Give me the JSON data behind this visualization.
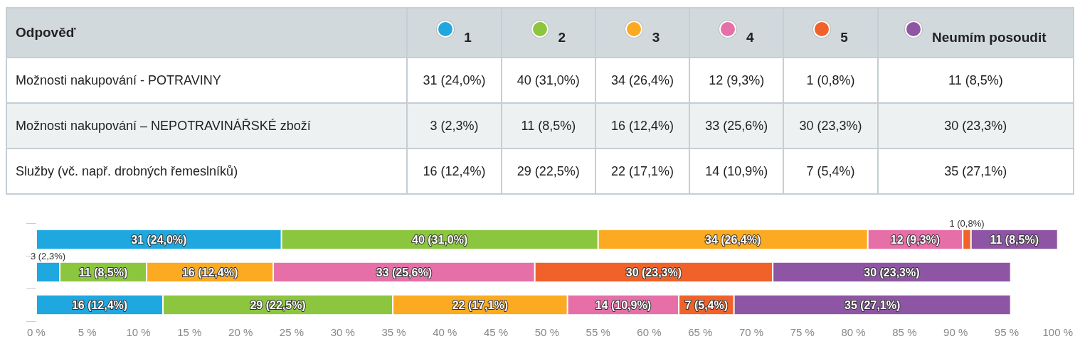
{
  "chart_data": {
    "type": "bar",
    "orientation": "horizontal",
    "stacked": true,
    "legend": "top",
    "tick_labels": "x",
    "grid": false,
    "categories": [
      null,
      null,
      null
    ],
    "annotations": [
      "Odpověď",
      "Možnosti nakupování - POTRAVINY",
      "Možnosti nakupování – NEPOTRAVINÁŘSKÉ zboží",
      "Služby (vč. např. drobných řemeslníků)"
    ],
    "series": [
      {
        "name": "1",
        "color": "#1fa8e0",
        "values": [
          24.0,
          2.3,
          12.4
        ],
        "value_labels": [
          "31 (24,0%)",
          "3 (2,3%)",
          "16 (12,4%)"
        ]
      },
      {
        "name": "2",
        "color": "#8cc63f",
        "values": [
          31.0,
          8.5,
          22.5
        ],
        "value_labels": [
          "40 (31,0%)",
          "11 (8,5%)",
          "29 (22,5%)"
        ]
      },
      {
        "name": "3",
        "color": "#fbaa22",
        "values": [
          26.4,
          12.4,
          17.1
        ],
        "value_labels": [
          "34 (26,4%)",
          "16 (12,4%)",
          "22 (17,1%)"
        ]
      },
      {
        "name": "4",
        "color": "#e66fa8",
        "values": [
          9.3,
          25.6,
          10.9
        ],
        "value_labels": [
          "12 (9,3%)",
          "33 (25,6%)",
          "14 (10,9%)"
        ]
      },
      {
        "name": "5",
        "color": "#f0622a",
        "values": [
          0.8,
          23.3,
          5.4
        ],
        "value_labels": [
          "1 (0,8%)",
          "30 (23,3%)",
          "7 (5,4%)"
        ]
      },
      {
        "name": "Neumím posoudit",
        "color": "#8e55a4",
        "values": [
          8.5,
          23.3,
          27.1
        ],
        "value_labels": [
          "11 (8,5%)",
          "30 (23,3%)",
          "35 (27,1%)"
        ]
      }
    ],
    "xlim": [
      0,
      100
    ],
    "xticks": [
      {
        "value": 0,
        "label": "0 %"
      },
      {
        "value": 5,
        "label": "5 %"
      },
      {
        "value": 10,
        "label": "10 %"
      },
      {
        "value": 15,
        "label": "15 %"
      },
      {
        "value": 20,
        "label": "20 %"
      },
      {
        "value": 25,
        "label": "25 %"
      },
      {
        "value": 30,
        "label": "30 %"
      },
      {
        "value": 35,
        "label": "35 %"
      },
      {
        "value": 40,
        "label": "40 %"
      },
      {
        "value": 45,
        "label": "45 %"
      },
      {
        "value": 50,
        "label": "50 %"
      },
      {
        "value": 55,
        "label": "55 %"
      },
      {
        "value": 60,
        "label": "60 %"
      },
      {
        "value": 65,
        "label": "65 %"
      },
      {
        "value": 70,
        "label": "70 %"
      },
      {
        "value": 75,
        "label": "75 %"
      },
      {
        "value": 80,
        "label": "80 %"
      },
      {
        "value": 85,
        "label": "85 %"
      },
      {
        "value": 90,
        "label": "90 %"
      },
      {
        "value": 95,
        "label": "95 %"
      },
      {
        "value": 100,
        "label": "100 %"
      }
    ]
  }
}
